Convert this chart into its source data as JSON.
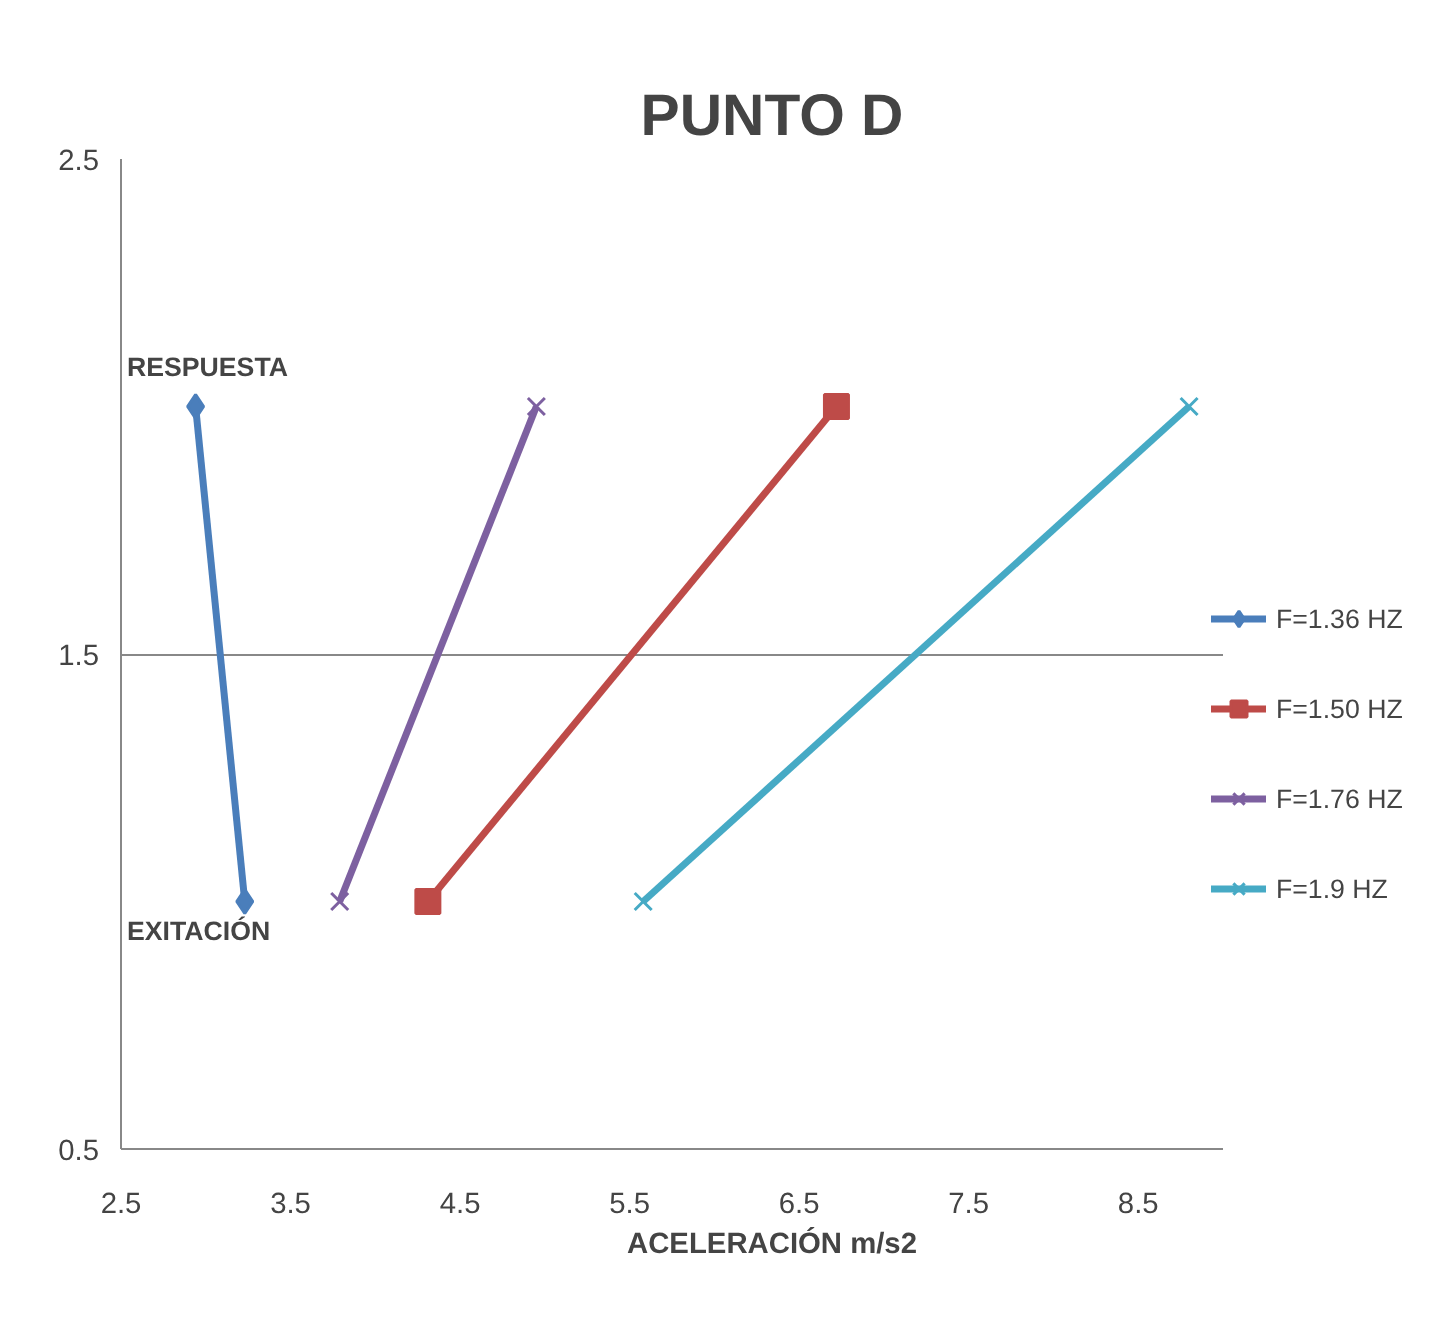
{
  "chart_data": {
    "type": "line",
    "title": "PUNTO D",
    "xlabel": "ACELERACIÓN m/s2",
    "xlim": [
      2.5,
      9.0
    ],
    "xticks": [
      2.5,
      3.5,
      4.5,
      5.5,
      6.5,
      7.5,
      8.5
    ],
    "ylim": [
      0.5,
      2.5
    ],
    "yticks": [
      0.5,
      1.5,
      2.5
    ],
    "grid": "y",
    "legend": "right",
    "annotations": [
      "RESPUESTA",
      "EXITACIÓN"
    ],
    "series": [
      {
        "name": "F=1.36 HZ",
        "color": "#4a7ebb",
        "marker": "diamond",
        "x": [
          3.23,
          2.94
        ],
        "values": [
          1,
          2
        ]
      },
      {
        "name": "F=1.50 HZ",
        "color": "#be4b48",
        "marker": "square",
        "x": [
          4.31,
          6.72
        ],
        "values": [
          1,
          2
        ]
      },
      {
        "name": "F=1.76 HZ",
        "color": "#7d60a0",
        "marker": "cross",
        "x": [
          3.79,
          4.95
        ],
        "values": [
          1,
          2
        ]
      },
      {
        "name": "F=1.9 HZ",
        "color": "#46aac5",
        "marker": "cross",
        "x": [
          5.58,
          8.8
        ],
        "values": [
          1,
          2
        ]
      }
    ]
  }
}
